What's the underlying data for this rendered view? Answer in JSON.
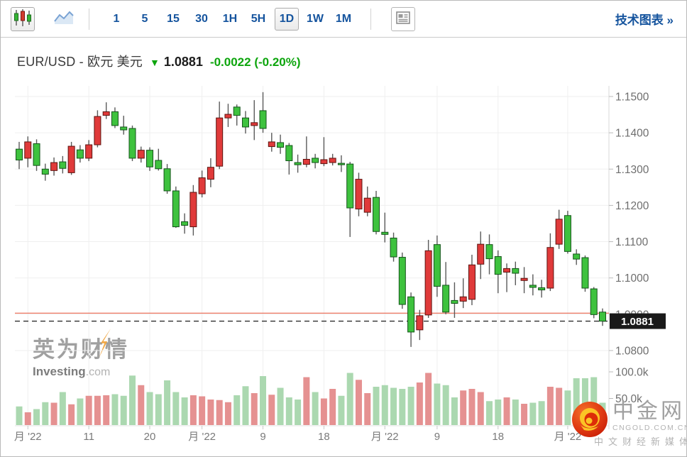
{
  "toolbar": {
    "timeframes": [
      "1",
      "5",
      "15",
      "30",
      "1H",
      "5H",
      "1D",
      "1W",
      "1M"
    ],
    "selected_timeframe": "1D",
    "tech_chart_link": "技术图表 »",
    "icons": {
      "candlestick_chart": "three-candles-glyph",
      "line_chart": "area-line-glyph",
      "news_panel": "newspaper-glyph"
    }
  },
  "title": {
    "instrument": "EUR/USD - 欧元 美元",
    "arrow": "▼",
    "price": "1.0881",
    "change_text": "-0.0022 (-0.20%)",
    "direction": "down"
  },
  "watermark": {
    "cn": "英为财情",
    "en_bold": "Investing",
    "en_light": ".com"
  },
  "logo": {
    "name": "中金网",
    "domain": "CNGOLD.COM.CN",
    "tagline": "中文财经新媒体"
  },
  "chart_data": {
    "type": "candlestick",
    "title": "EUR/USD daily candlestick chart with volume",
    "convention": "red = up day, green = down day (Chinese convention)",
    "ylim": [
      1.0795,
      1.152
    ],
    "price_axis": {
      "side": "right",
      "ticks": [
        {
          "v": 1.15,
          "label": "1.1500"
        },
        {
          "v": 1.14,
          "label": "1.1400"
        },
        {
          "v": 1.13,
          "label": "1.1300"
        },
        {
          "v": 1.12,
          "label": "1.1200"
        },
        {
          "v": 1.11,
          "label": "1.1100"
        },
        {
          "v": 1.1,
          "label": "1.1000"
        },
        {
          "v": 1.09,
          "label": "1.0900"
        },
        {
          "v": 1.08,
          "label": "1.0800"
        }
      ]
    },
    "volume_axis": {
      "ticks": [
        {
          "vk": 100,
          "label": "100.0k"
        },
        {
          "vk": 50,
          "label": "50.0k"
        }
      ]
    },
    "x_ticks": [
      {
        "i": 1,
        "label": "月 '22"
      },
      {
        "i": 8,
        "label": "11"
      },
      {
        "i": 15,
        "label": "20"
      },
      {
        "i": 21,
        "label": "月 '22"
      },
      {
        "i": 28,
        "label": "9"
      },
      {
        "i": 35,
        "label": "18"
      },
      {
        "i": 42,
        "label": "月 '22"
      },
      {
        "i": 48,
        "label": "9"
      },
      {
        "i": 55,
        "label": "18"
      },
      {
        "i": 63,
        "label": "月 '22"
      }
    ],
    "last_price": 1.0881,
    "last_price_label": "1.0881",
    "prev_close_line": 1.0903,
    "grid": true,
    "colors": {
      "up": "#e03a3a",
      "up_stroke": "#5d1410",
      "down": "#3ec23e",
      "down_stroke": "#14541a",
      "wick": "#5a5a5a",
      "vol_up": "#e59191",
      "vol_down": "#abd8b0",
      "grid": "#efefef",
      "axis_line": "#d9d9d9",
      "axis_text": "#6e6e6e",
      "x_text": "#7a7a7a",
      "prev_close_line": "#e85037",
      "dashed_line": "#2e2e2e",
      "tag_bg": "#1a1a1a",
      "tag_text": "#ffffff"
    },
    "candle_format": [
      "open",
      "high",
      "low",
      "close",
      "volume_k"
    ],
    "candles": [
      [
        1.1355,
        1.1375,
        1.13,
        1.1325,
        35
      ],
      [
        1.133,
        1.139,
        1.1305,
        1.1375,
        24
      ],
      [
        1.137,
        1.1382,
        1.1295,
        1.131,
        30
      ],
      [
        1.13,
        1.1315,
        1.1268,
        1.1286,
        43
      ],
      [
        1.1296,
        1.1332,
        1.1282,
        1.1318,
        42
      ],
      [
        1.132,
        1.1336,
        1.1288,
        1.1302,
        62
      ],
      [
        1.129,
        1.1375,
        1.1284,
        1.1363,
        39
      ],
      [
        1.1353,
        1.1366,
        1.1318,
        1.133,
        50
      ],
      [
        1.133,
        1.138,
        1.1322,
        1.1367,
        55
      ],
      [
        1.1367,
        1.1462,
        1.136,
        1.1445,
        55
      ],
      [
        1.1448,
        1.1484,
        1.1438,
        1.1458,
        56
      ],
      [
        1.1458,
        1.147,
        1.1413,
        1.142,
        58
      ],
      [
        1.1416,
        1.1447,
        1.1395,
        1.1408,
        55
      ],
      [
        1.1412,
        1.142,
        1.1322,
        1.133,
        93
      ],
      [
        1.133,
        1.1362,
        1.1318,
        1.1352,
        75
      ],
      [
        1.1352,
        1.136,
        1.1295,
        1.1306,
        62
      ],
      [
        1.1324,
        1.1356,
        1.1296,
        1.1301,
        58
      ],
      [
        1.1301,
        1.1314,
        1.1232,
        1.124,
        84
      ],
      [
        1.124,
        1.1252,
        1.1138,
        1.1141,
        62
      ],
      [
        1.1155,
        1.1178,
        1.1122,
        1.1145,
        52
      ],
      [
        1.1141,
        1.1256,
        1.1117,
        1.1236,
        56
      ],
      [
        1.1232,
        1.1296,
        1.1222,
        1.1276,
        54
      ],
      [
        1.1272,
        1.133,
        1.125,
        1.1305,
        48
      ],
      [
        1.1308,
        1.1486,
        1.13,
        1.1441,
        47
      ],
      [
        1.1441,
        1.148,
        1.1416,
        1.1451,
        43
      ],
      [
        1.1471,
        1.1478,
        1.142,
        1.1448,
        56
      ],
      [
        1.1441,
        1.146,
        1.1398,
        1.1416,
        73
      ],
      [
        1.142,
        1.149,
        1.138,
        1.1428,
        60
      ],
      [
        1.1461,
        1.1512,
        1.14,
        1.1412,
        92
      ],
      [
        1.1362,
        1.14,
        1.1348,
        1.1375,
        57
      ],
      [
        1.1373,
        1.1395,
        1.1342,
        1.136,
        70
      ],
      [
        1.1365,
        1.1372,
        1.1285,
        1.1323,
        52
      ],
      [
        1.1318,
        1.134,
        1.129,
        1.1312,
        48
      ],
      [
        1.1313,
        1.139,
        1.1305,
        1.1327,
        90
      ],
      [
        1.133,
        1.1342,
        1.1302,
        1.1318,
        62
      ],
      [
        1.1315,
        1.1388,
        1.1308,
        1.1326,
        50
      ],
      [
        1.1318,
        1.1342,
        1.131,
        1.133,
        68
      ],
      [
        1.1316,
        1.1338,
        1.1292,
        1.1312,
        55
      ],
      [
        1.1314,
        1.132,
        1.1113,
        1.1193,
        98
      ],
      [
        1.119,
        1.129,
        1.117,
        1.1272,
        85
      ],
      [
        1.1181,
        1.1252,
        1.117,
        1.122,
        60
      ],
      [
        1.1222,
        1.124,
        1.112,
        1.1128,
        72
      ],
      [
        1.1126,
        1.118,
        1.1098,
        1.112,
        75
      ],
      [
        1.111,
        1.1125,
        1.1045,
        1.1058,
        70
      ],
      [
        1.1057,
        1.107,
        1.0915,
        1.0927,
        68
      ],
      [
        1.0948,
        1.096,
        1.081,
        1.0851,
        72
      ],
      [
        1.0857,
        1.0912,
        1.0829,
        1.0896,
        80
      ],
      [
        1.0898,
        1.1105,
        1.089,
        1.1075,
        98
      ],
      [
        1.1092,
        1.1117,
        1.0948,
        1.0977,
        78
      ],
      [
        1.098,
        1.1044,
        1.09,
        1.0906,
        75
      ],
      [
        1.0938,
        1.0988,
        1.089,
        1.093,
        52
      ],
      [
        1.0936,
        1.0999,
        1.0917,
        1.0948,
        65
      ],
      [
        1.0941,
        1.1064,
        1.0925,
        1.1036,
        68
      ],
      [
        1.1038,
        1.1128,
        1.0997,
        1.1093,
        62
      ],
      [
        1.1092,
        1.112,
        1.101,
        1.1053,
        45
      ],
      [
        1.1059,
        1.1076,
        1.0958,
        1.101,
        48
      ],
      [
        1.1016,
        1.104,
        1.0961,
        1.1026,
        52
      ],
      [
        1.1026,
        1.1045,
        1.098,
        1.1013,
        48
      ],
      [
        1.0993,
        1.103,
        1.0958,
        1.0999,
        40
      ],
      [
        1.098,
        1.101,
        1.0952,
        1.0974,
        42
      ],
      [
        1.0973,
        1.0995,
        1.0946,
        1.0967,
        45
      ],
      [
        1.0972,
        1.1123,
        1.0964,
        1.1084,
        72
      ],
      [
        1.1093,
        1.1188,
        1.108,
        1.1162,
        70
      ],
      [
        1.1172,
        1.1185,
        1.1067,
        1.1073,
        65
      ],
      [
        1.1066,
        1.1079,
        1.1036,
        1.1052,
        88
      ],
      [
        1.1056,
        1.1062,
        1.0962,
        1.0972,
        88
      ],
      [
        1.097,
        1.0975,
        1.0889,
        1.0899,
        90
      ],
      [
        1.0906,
        1.0916,
        1.0868,
        1.0881,
        42
      ]
    ]
  }
}
